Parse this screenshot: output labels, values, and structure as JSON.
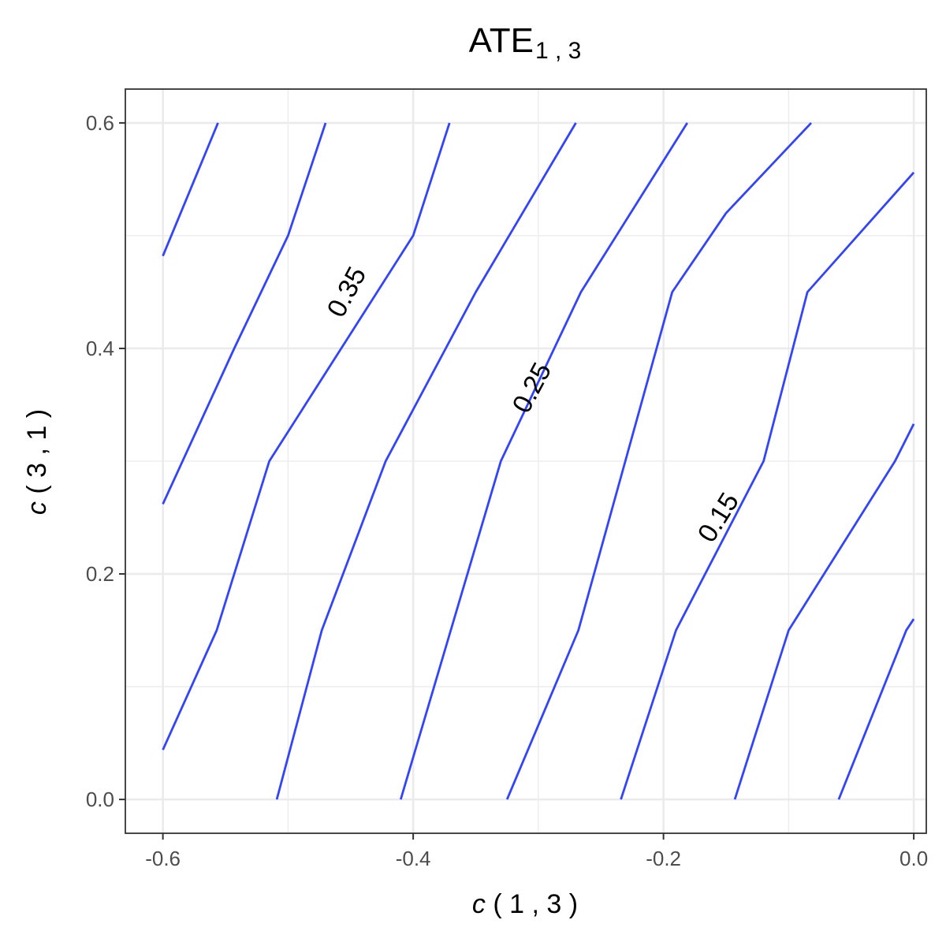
{
  "chart_data": {
    "type": "line",
    "subtype": "contour",
    "title": {
      "main": "ATE",
      "subscript": "1 , 3"
    },
    "xlabel": {
      "italic": "c",
      "rest": " ( 1 , 3 )"
    },
    "ylabel": {
      "italic": "c",
      "rest": " ( 3 , 1 )"
    },
    "xlim": [
      -0.63,
      0.01
    ],
    "ylim": [
      -0.03,
      0.63
    ],
    "x_ticks": [
      -0.6,
      -0.4,
      -0.2,
      0.0
    ],
    "x_tick_labels": [
      "-0.6",
      "-0.4",
      "-0.2",
      "0.0"
    ],
    "y_ticks": [
      0.0,
      0.2,
      0.4,
      0.6
    ],
    "y_tick_labels": [
      "0.0",
      "0.2",
      "0.4",
      "0.6"
    ],
    "x_minor": [
      -0.5,
      -0.3,
      -0.1
    ],
    "y_minor": [
      0.1,
      0.3,
      0.5
    ],
    "grid": true,
    "line_color": "#3344ff",
    "series": [
      {
        "points": [
          [
            -0.6,
            0.482
          ],
          [
            -0.556,
            0.6
          ]
        ]
      },
      {
        "points": [
          [
            -0.6,
            0.262
          ],
          [
            -0.543,
            0.4
          ],
          [
            -0.5,
            0.5
          ],
          [
            -0.47,
            0.6
          ]
        ]
      },
      {
        "points": [
          [
            -0.6,
            0.044
          ],
          [
            -0.557,
            0.15
          ],
          [
            -0.515,
            0.3
          ],
          [
            -0.4,
            0.5
          ],
          [
            -0.371,
            0.6
          ]
        ]
      },
      {
        "points": [
          [
            -0.509,
            0.0
          ],
          [
            -0.473,
            0.15
          ],
          [
            -0.422,
            0.3
          ],
          [
            -0.35,
            0.45
          ],
          [
            -0.27,
            0.6
          ]
        ]
      },
      {
        "points": [
          [
            -0.41,
            0.0
          ],
          [
            -0.33,
            0.3
          ],
          [
            -0.266,
            0.45
          ],
          [
            -0.181,
            0.6
          ]
        ]
      },
      {
        "points": [
          [
            -0.325,
            0.0
          ],
          [
            -0.268,
            0.15
          ],
          [
            -0.193,
            0.45
          ],
          [
            -0.15,
            0.52
          ],
          [
            -0.082,
            0.6
          ]
        ]
      },
      {
        "points": [
          [
            -0.234,
            0.0
          ],
          [
            -0.19,
            0.15
          ],
          [
            -0.12,
            0.3
          ],
          [
            -0.085,
            0.45
          ],
          [
            0.0,
            0.556
          ]
        ]
      },
      {
        "points": [
          [
            -0.143,
            0.0
          ],
          [
            -0.1,
            0.15
          ],
          [
            -0.015,
            0.3
          ],
          [
            0.0,
            0.333
          ]
        ]
      },
      {
        "points": [
          [
            -0.06,
            0.0
          ],
          [
            -0.006,
            0.15
          ],
          [
            0.0,
            0.16
          ]
        ]
      }
    ],
    "contour_labels": [
      {
        "text": "0.35",
        "x": -0.453,
        "y": 0.45,
        "angle_deg": -62
      },
      {
        "text": "0.25",
        "x": -0.305,
        "y": 0.365,
        "angle_deg": -62
      },
      {
        "text": "0.15",
        "x": -0.156,
        "y": 0.25,
        "angle_deg": -58
      }
    ]
  }
}
